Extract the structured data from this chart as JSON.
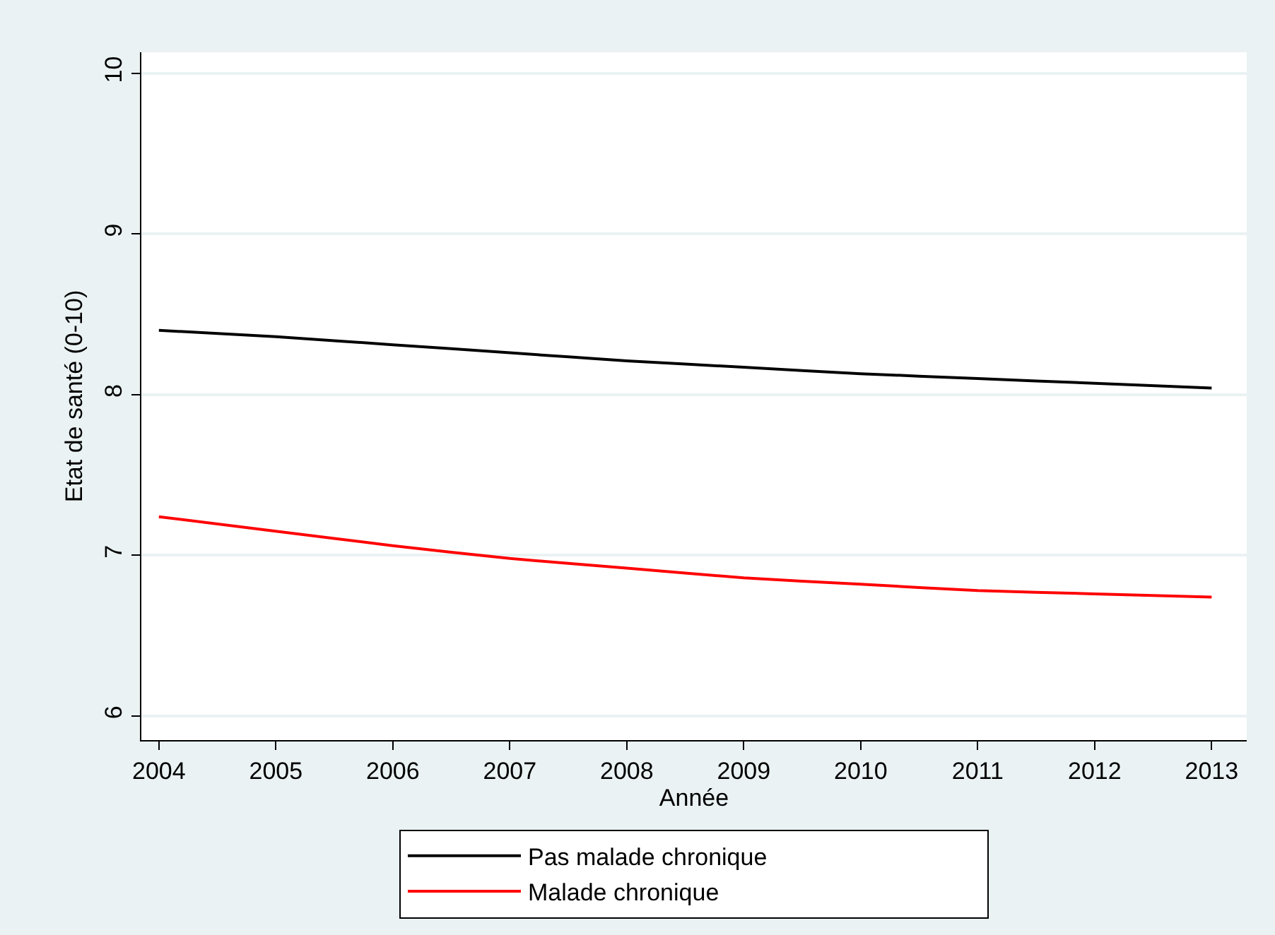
{
  "chart_data": {
    "type": "line",
    "xlabel": "Année",
    "ylabel": "Etat de santé (0-10)",
    "x": [
      2004,
      2005,
      2006,
      2007,
      2008,
      2009,
      2010,
      2011,
      2012,
      2013
    ],
    "series": [
      {
        "name": "Pas malade chronique",
        "color": "#000000",
        "values": [
          8.4,
          8.36,
          8.31,
          8.26,
          8.21,
          8.17,
          8.13,
          8.1,
          8.07,
          8.04
        ]
      },
      {
        "name": "Malade chronique",
        "color": "#ff0000",
        "values": [
          7.24,
          7.15,
          7.06,
          6.98,
          6.92,
          6.86,
          6.82,
          6.78,
          6.76,
          6.74
        ]
      }
    ],
    "xlim": [
      2003.85,
      2013.3
    ],
    "xticks": [
      2004,
      2005,
      2006,
      2007,
      2008,
      2009,
      2010,
      2011,
      2012,
      2013
    ],
    "ylim": [
      5.85,
      10.13
    ],
    "yticks": [
      6,
      7,
      8,
      9,
      10
    ],
    "grid": "y",
    "legend": "bottom",
    "marker": "none",
    "line_style": "solid"
  }
}
